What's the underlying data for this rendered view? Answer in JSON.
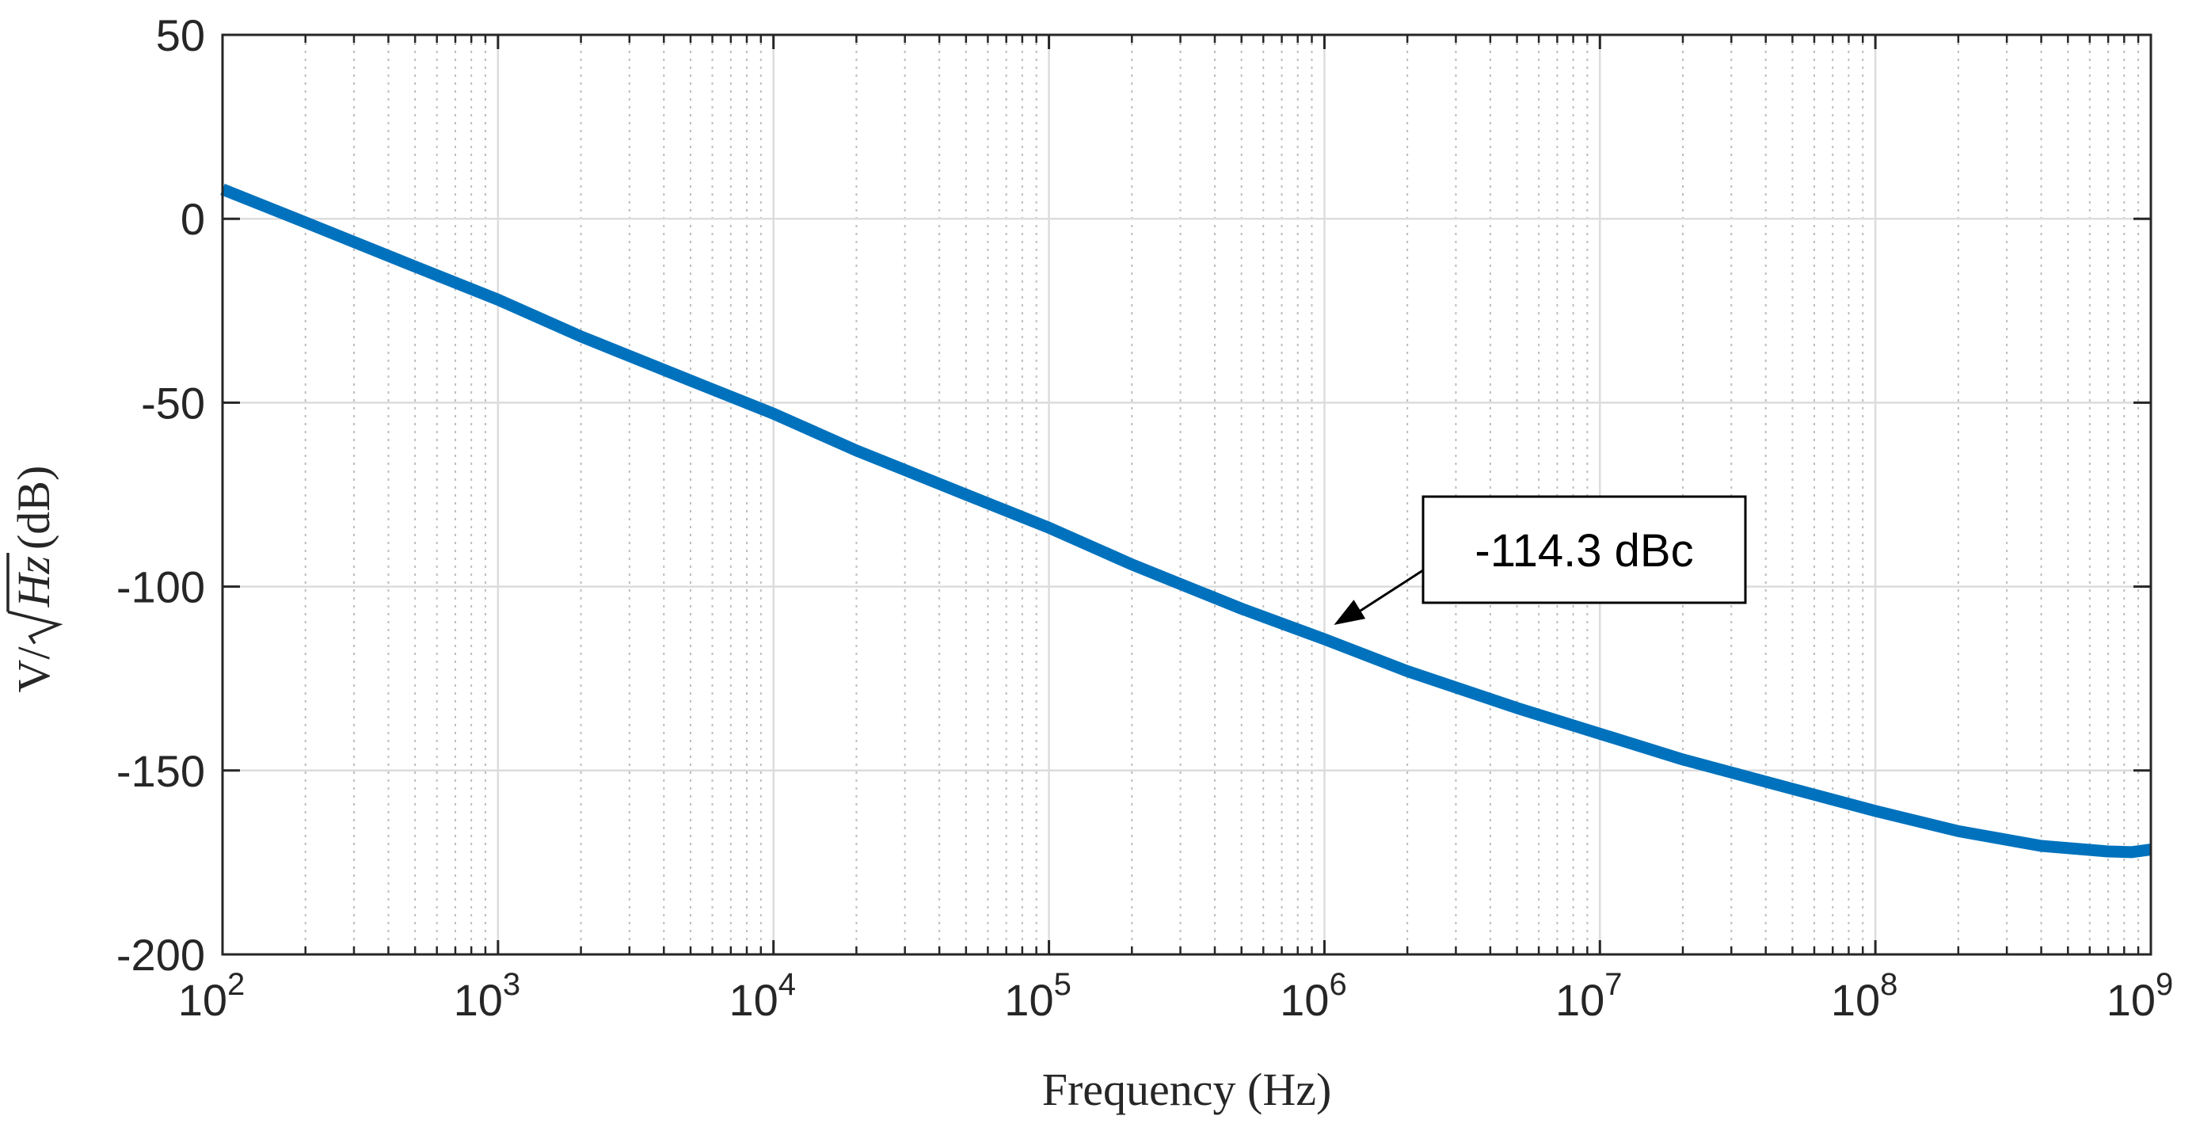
{
  "chart_data": {
    "type": "line",
    "x_scale": "log",
    "xlim": [
      100,
      1000000000
    ],
    "ylim": [
      -200,
      50
    ],
    "grid": true,
    "minor_grid_x": true,
    "xlabel": "Frequency (Hz)",
    "ylabel": {
      "prefix": "V/",
      "radicand": "Hz",
      "suffix": " (dB)"
    },
    "xticks": [
      {
        "value": 100,
        "base": "10",
        "exp": "2"
      },
      {
        "value": 1000,
        "base": "10",
        "exp": "3"
      },
      {
        "value": 10000,
        "base": "10",
        "exp": "4"
      },
      {
        "value": 100000,
        "base": "10",
        "exp": "5"
      },
      {
        "value": 1000000,
        "base": "10",
        "exp": "6"
      },
      {
        "value": 10000000,
        "base": "10",
        "exp": "7"
      },
      {
        "value": 100000000,
        "base": "10",
        "exp": "8"
      },
      {
        "value": 1000000000,
        "base": "10",
        "exp": "9"
      }
    ],
    "yticks": [
      {
        "value": 50,
        "label": "50"
      },
      {
        "value": 0,
        "label": "0"
      },
      {
        "value": -50,
        "label": "-50"
      },
      {
        "value": -100,
        "label": "-100"
      },
      {
        "value": -150,
        "label": "-150"
      },
      {
        "value": -200,
        "label": "-200"
      }
    ],
    "series": [
      {
        "color": "#0072BD",
        "x": [
          100,
          200,
          500,
          1000,
          2000,
          5000,
          10000,
          20000,
          50000,
          100000,
          200000,
          500000,
          1000000,
          2000000,
          5000000,
          10000000,
          20000000,
          50000000,
          100000000,
          200000000,
          400000000,
          700000000,
          850000000,
          1000000000
        ],
        "y": [
          8,
          -1,
          -13,
          -22,
          -32,
          -44,
          -53,
          -63,
          -75,
          -84,
          -94,
          -106,
          -114.3,
          -123,
          -133,
          -140,
          -147,
          -155,
          -161,
          -166.5,
          -170.5,
          -172,
          -172.2,
          -171.5
        ]
      }
    ],
    "annotations": [
      {
        "text": "-114.3 dBc",
        "x": 1000000,
        "y": -114.3
      }
    ]
  }
}
